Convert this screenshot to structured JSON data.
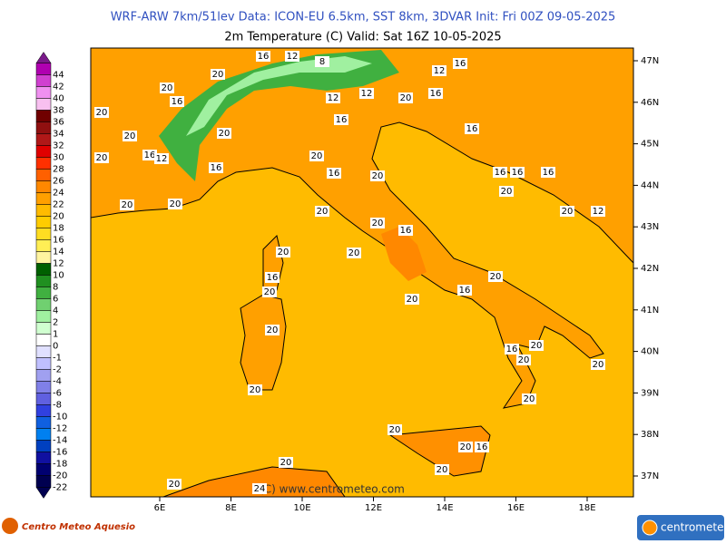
{
  "header": {
    "line1": "WRF-ARW 7km/51lev   Data: ICON-EU 6.5km, SST 8km, 3DVAR   Init: Fri 00Z 09-05-2025",
    "line2": "2m Temperature (C)  Valid: Sat 16Z 10-05-2025"
  },
  "colorbar": {
    "labels": [
      44,
      42,
      40,
      38,
      36,
      34,
      32,
      30,
      28,
      26,
      24,
      22,
      20,
      18,
      16,
      14,
      12,
      10,
      8,
      6,
      4,
      2,
      1,
      0,
      -1,
      -2,
      -4,
      -6,
      -8,
      -10,
      -12,
      -14,
      -16,
      -18,
      -20,
      -22
    ],
    "colors": [
      "#7a1a8a",
      "#b000b0",
      "#d040d0",
      "#f090f0",
      "#f8c0f0",
      "#700000",
      "#901010",
      "#b01818",
      "#e00000",
      "#ff3000",
      "#ff6000",
      "#ff8800",
      "#ffa000",
      "#ffbb00",
      "#ffcc00",
      "#ffdd22",
      "#ffee55",
      "#fff4a0",
      "#006000",
      "#209020",
      "#40b040",
      "#70d070",
      "#a0f0a0",
      "#d0ffd0",
      "#ffffff",
      "#e0e0ff",
      "#c0c0ff",
      "#a0a0f0",
      "#8080e8",
      "#6060e0",
      "#3040e0",
      "#1060e0",
      "#0080f0",
      "#0040c0",
      "#1010a0",
      "#000070",
      "#000050"
    ]
  },
  "lat_labels": [
    "47N",
    "46N",
    "45N",
    "44N",
    "43N",
    "42N",
    "41N",
    "40N",
    "39N",
    "38N",
    "37N"
  ],
  "lon_labels": [
    "6E",
    "8E",
    "10E",
    "12E",
    "14E",
    "16E",
    "18E"
  ],
  "contour_labels": [
    20,
    20,
    16,
    12,
    8,
    20,
    16,
    20,
    20,
    20,
    16,
    12,
    16,
    20,
    16,
    20,
    20,
    12,
    16,
    16,
    16,
    16,
    16,
    16,
    20,
    20,
    12,
    20,
    20,
    20,
    20,
    20,
    16,
    20,
    20,
    16,
    20,
    20,
    20,
    16,
    16,
    20,
    20,
    20,
    20,
    20,
    20,
    20,
    16,
    20,
    20,
    20,
    24,
    16,
    12,
    12
  ],
  "watermark": "(C) www.centrometeo.com",
  "logo_left": "Centro Meteo Aquesio",
  "logo_right": "centrometeo"
}
